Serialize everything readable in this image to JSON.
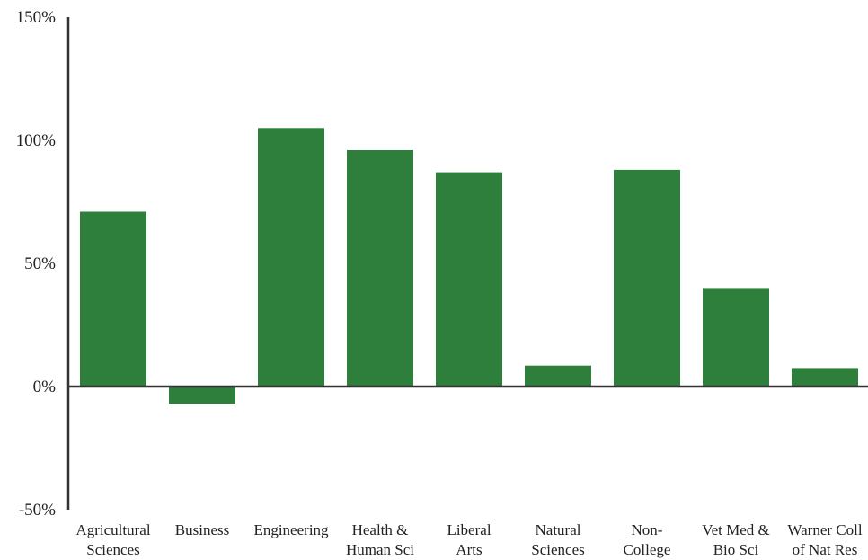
{
  "colors": {
    "bar": "#2e7f3b",
    "axis": "#333333",
    "text": "#222222"
  },
  "chart_data": {
    "type": "bar",
    "title": "",
    "xlabel": "",
    "ylabel": "",
    "ylim": [
      -50,
      150
    ],
    "y_ticks": [
      -50,
      0,
      50,
      100,
      150
    ],
    "y_tick_labels": [
      "-50%",
      "0%",
      "50%",
      "100%",
      "150%"
    ],
    "grid": false,
    "legend": "none",
    "categories": [
      [
        "Agricultural",
        "Sciences"
      ],
      [
        "Business"
      ],
      [
        "Engineering"
      ],
      [
        "Health &",
        "Human Sci"
      ],
      [
        "Liberal",
        "Arts"
      ],
      [
        "Natural",
        "Sciences"
      ],
      [
        "Non-",
        "College"
      ],
      [
        "Vet Med &",
        "Bio Sci"
      ],
      [
        "Warner Coll",
        "of Nat Res"
      ]
    ],
    "values": [
      71,
      -7,
      105,
      96,
      87,
      8.5,
      88,
      40,
      7.5
    ]
  }
}
